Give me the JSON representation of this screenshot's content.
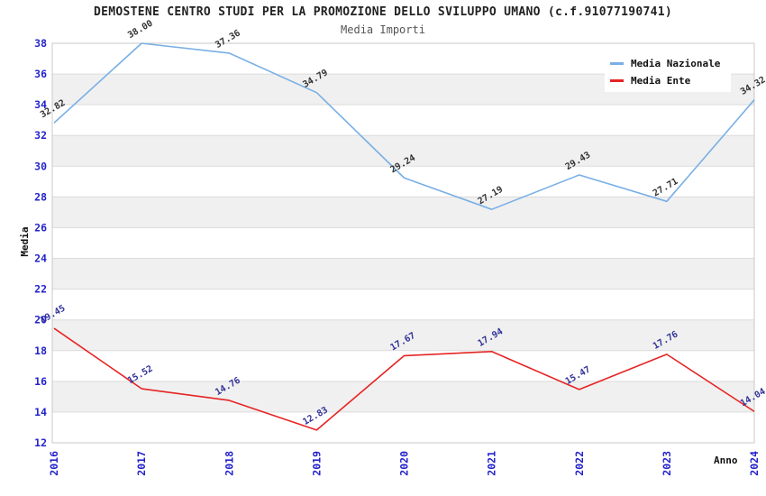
{
  "header": {
    "title": "DEMOSTENE CENTRO STUDI PER LA PROMOZIONE DELLO SVILUPPO UMANO (c.f.91077190741)",
    "subtitle": "Media Importi"
  },
  "chart_data": {
    "type": "line",
    "x": [
      "2016",
      "2017",
      "2018",
      "2019",
      "2020",
      "2021",
      "2022",
      "2023",
      "2024"
    ],
    "xlabel": "Anno",
    "ylabel": "Media",
    "ylim": [
      12,
      38
    ],
    "ytick_step": 2,
    "grid": "horizontal",
    "band_rows": true,
    "legend_position": "top-right",
    "series": [
      {
        "name": "Media Nazionale",
        "color": "#79afe5",
        "label_color": "#333333",
        "values": [
          32.82,
          38.0,
          37.36,
          34.79,
          29.24,
          27.19,
          29.43,
          27.71,
          34.32
        ]
      },
      {
        "name": "Media Ente",
        "color": "#e62424",
        "label_color": "#333399",
        "values": [
          19.45,
          15.52,
          14.76,
          12.83,
          17.67,
          17.94,
          15.47,
          17.76,
          14.04
        ]
      }
    ],
    "colors": {
      "tick_label": "#2323cc",
      "band_fill": "#f0f0f0",
      "grid_line": "#dcdcdc",
      "border": "#c9c9c9"
    }
  }
}
